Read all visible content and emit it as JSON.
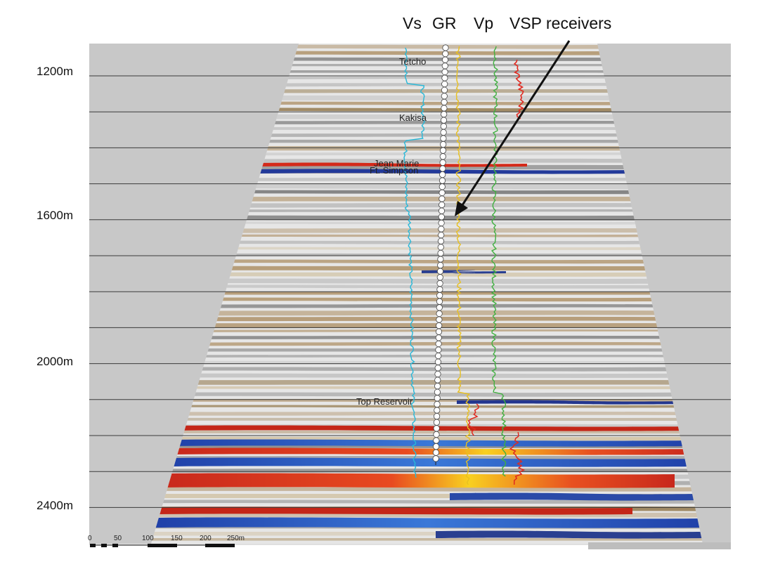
{
  "headers": {
    "vs": "Vs",
    "gr": "GR",
    "vp": "Vp",
    "vsp": "VSP receivers"
  },
  "depth_axis": {
    "ticks": [
      "1200m",
      "1600m",
      "2000m",
      "2400m"
    ]
  },
  "horizons": {
    "tetcho": "Tetcho",
    "kakisa": "Kakisa",
    "jean_marie": "Jean Marie",
    "ft_simpson": "Ft. Simpson",
    "top_reservoir": "Top Reservoir"
  },
  "scale_bar": {
    "labels": [
      "0",
      "50",
      "100",
      "150",
      "200",
      "250m"
    ]
  },
  "colors": {
    "panel_bg": "#c8c8c8",
    "peak_red": "#d42a1a",
    "trough_blue": "#233a9a",
    "highlight_yellow": "#f8d020",
    "brown": "#8a6a3a",
    "vs_log": "#28b8d8",
    "gr_log": "#e8c020",
    "vp_log": "#40b040"
  }
}
